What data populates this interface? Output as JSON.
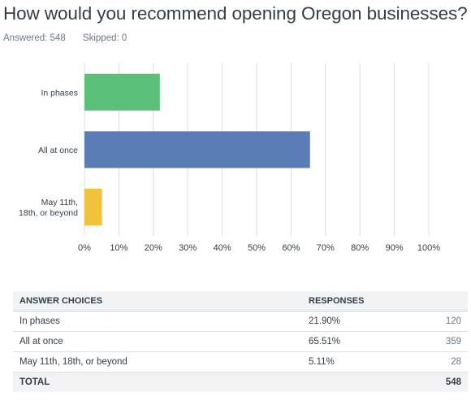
{
  "question": {
    "title": "How would you recommend opening Oregon businesses?",
    "answered_label": "Answered: 548",
    "skipped_label": "Skipped: 0"
  },
  "chart_data": {
    "type": "bar",
    "orientation": "horizontal",
    "categories": [
      [
        "In phases"
      ],
      [
        "All at once"
      ],
      [
        "May 11th,",
        "18th, or beyond"
      ]
    ],
    "values": [
      21.9,
      65.51,
      5.11
    ],
    "colors": [
      "#5bc07a",
      "#5a7db5",
      "#f1c23c"
    ],
    "xlim": [
      0,
      100
    ],
    "x_ticks": [
      "0%",
      "10%",
      "20%",
      "30%",
      "40%",
      "50%",
      "60%",
      "70%",
      "80%",
      "90%",
      "100%"
    ],
    "grid": true
  },
  "table": {
    "headers": [
      "ANSWER CHOICES",
      "RESPONSES",
      ""
    ],
    "rows": [
      {
        "choice": "In phases",
        "percent": "21.90%",
        "count": "120"
      },
      {
        "choice": "All at once",
        "percent": "65.51%",
        "count": "359"
      },
      {
        "choice": "May 11th, 18th, or beyond",
        "percent": "5.11%",
        "count": "28"
      }
    ],
    "total": {
      "label": "TOTAL",
      "count": "548"
    }
  }
}
